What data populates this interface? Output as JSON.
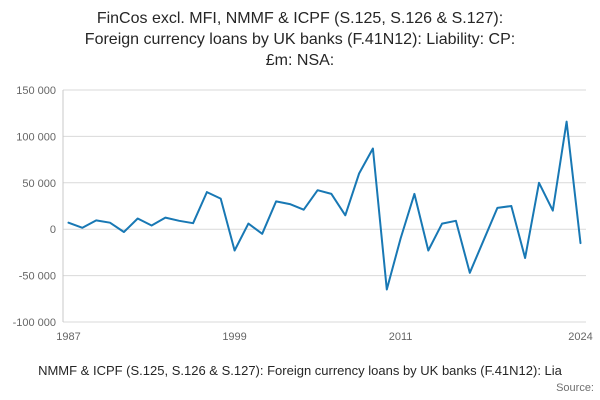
{
  "title": "FinCos excl. MFI, NMMF & ICPF (S.125, S.126 & S.127):\nForeign currency loans by UK banks (F.41N12): Liability: CP:\n£m: NSA:",
  "footer": {
    "caption": "NMMF & ICPF (S.125, S.126 & S.127): Foreign currency loans by UK banks (F.41N12): Lia",
    "source": "Source:"
  },
  "chart_data": {
    "type": "line",
    "title": "FinCos excl. MFI, NMMF & ICPF (S.125, S.126 & S.127): Foreign currency loans by UK banks (F.41N12): Liability: CP: £m: NSA:",
    "xlabel": "",
    "ylabel": "",
    "legend": "none",
    "grid": "horizontal",
    "line_color": "#1878b4",
    "grid_color": "#d9d9d9",
    "axis_color": "#c8c8c8",
    "tick_color": "#666666",
    "xlim": [
      1986.6,
      2024.4
    ],
    "ylim": [
      -100000,
      150000
    ],
    "x": [
      1987,
      1988,
      1989,
      1990,
      1991,
      1992,
      1993,
      1994,
      1995,
      1996,
      1997,
      1998,
      1999,
      2000,
      2001,
      2002,
      2003,
      2004,
      2005,
      2006,
      2007,
      2008,
      2009,
      2010,
      2011,
      2012,
      2013,
      2014,
      2015,
      2016,
      2017,
      2018,
      2019,
      2020,
      2021,
      2022,
      2023,
      2024
    ],
    "values": [
      7000,
      1500,
      9500,
      7000,
      -3000,
      11500,
      4000,
      12500,
      9000,
      6500,
      40000,
      33000,
      -23000,
      6000,
      -5000,
      30000,
      27000,
      21000,
      42000,
      38000,
      15000,
      60000,
      87000,
      -65000,
      -10000,
      38000,
      -23000,
      6000,
      9000,
      -47000,
      -12000,
      23000,
      25000,
      -31000,
      50000,
      20000,
      116000,
      -15000
    ],
    "yticks": [
      {
        "value": 150000,
        "label": "150 000"
      },
      {
        "value": 100000,
        "label": "100 000"
      },
      {
        "value": 50000,
        "label": "50 000"
      },
      {
        "value": 0,
        "label": "0"
      },
      {
        "value": -50000,
        "label": "-50 000"
      },
      {
        "value": -100000,
        "label": "-100 000"
      }
    ],
    "xticks": [
      {
        "value": 1987,
        "label": "1987"
      },
      {
        "value": 1999,
        "label": "1999"
      },
      {
        "value": 2011,
        "label": "2011"
      },
      {
        "value": 2024,
        "label": "2024"
      }
    ]
  }
}
